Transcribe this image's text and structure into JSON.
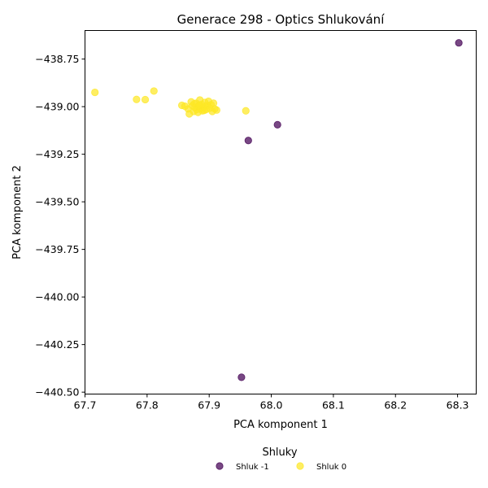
{
  "chart_data": {
    "type": "scatter",
    "title": "Generace 298 - Optics Shlukování",
    "xlabel": "PCA komponent 1",
    "ylabel": "PCA komponent 2",
    "xlim": [
      67.7,
      68.33
    ],
    "ylim": [
      -440.51,
      -438.6
    ],
    "x_ticks": [
      "67.7",
      "67.8",
      "67.9",
      "68.0",
      "68.1",
      "68.2",
      "68.3"
    ],
    "x_tick_values": [
      67.7,
      67.8,
      67.9,
      68.0,
      68.1,
      68.2,
      68.3
    ],
    "y_ticks": [
      "−438.75",
      "−439.00",
      "−439.25",
      "−439.50",
      "−439.75",
      "−440.00",
      "−440.25",
      "−440.50"
    ],
    "y_tick_values": [
      -438.75,
      -439.0,
      -439.25,
      -439.5,
      -439.75,
      -440.0,
      -440.25,
      -440.5
    ],
    "legend": {
      "title": "Shluky",
      "position": "bottom-center"
    },
    "series": [
      {
        "name": "Shluk -1",
        "color": "#440154",
        "points": [
          {
            "x": 68.302,
            "y": -438.665
          },
          {
            "x": 68.01,
            "y": -439.095
          },
          {
            "x": 67.963,
            "y": -439.178
          },
          {
            "x": 67.952,
            "y": -440.422
          }
        ]
      },
      {
        "name": "Shluk 0",
        "color": "#fde725",
        "points": [
          {
            "x": 67.716,
            "y": -438.925
          },
          {
            "x": 67.783,
            "y": -438.962
          },
          {
            "x": 67.797,
            "y": -438.963
          },
          {
            "x": 67.811,
            "y": -438.918
          },
          {
            "x": 67.959,
            "y": -439.022
          },
          {
            "x": 67.856,
            "y": -438.993
          },
          {
            "x": 67.861,
            "y": -438.998
          },
          {
            "x": 67.866,
            "y": -439.012
          },
          {
            "x": 67.868,
            "y": -439.038
          },
          {
            "x": 67.871,
            "y": -438.975
          },
          {
            "x": 67.873,
            "y": -438.995
          },
          {
            "x": 67.875,
            "y": -439.025
          },
          {
            "x": 67.877,
            "y": -439.005
          },
          {
            "x": 67.879,
            "y": -438.982
          },
          {
            "x": 67.88,
            "y": -439.015
          },
          {
            "x": 67.882,
            "y": -439.03
          },
          {
            "x": 67.883,
            "y": -438.998
          },
          {
            "x": 67.885,
            "y": -438.965
          },
          {
            "x": 67.886,
            "y": -439.01
          },
          {
            "x": 67.888,
            "y": -438.988
          },
          {
            "x": 67.889,
            "y": -439.022
          },
          {
            "x": 67.891,
            "y": -439.002
          },
          {
            "x": 67.893,
            "y": -438.978
          },
          {
            "x": 67.895,
            "y": -439.015
          },
          {
            "x": 67.897,
            "y": -438.995
          },
          {
            "x": 67.899,
            "y": -438.972
          },
          {
            "x": 67.901,
            "y": -439.008
          },
          {
            "x": 67.903,
            "y": -438.99
          },
          {
            "x": 67.905,
            "y": -439.025
          },
          {
            "x": 67.907,
            "y": -438.982
          },
          {
            "x": 67.909,
            "y": -439.012
          },
          {
            "x": 67.912,
            "y": -439.018
          },
          {
            "x": 67.876,
            "y": -438.985
          },
          {
            "x": 67.884,
            "y": -438.992
          },
          {
            "x": 67.892,
            "y": -439.02
          }
        ]
      }
    ]
  }
}
